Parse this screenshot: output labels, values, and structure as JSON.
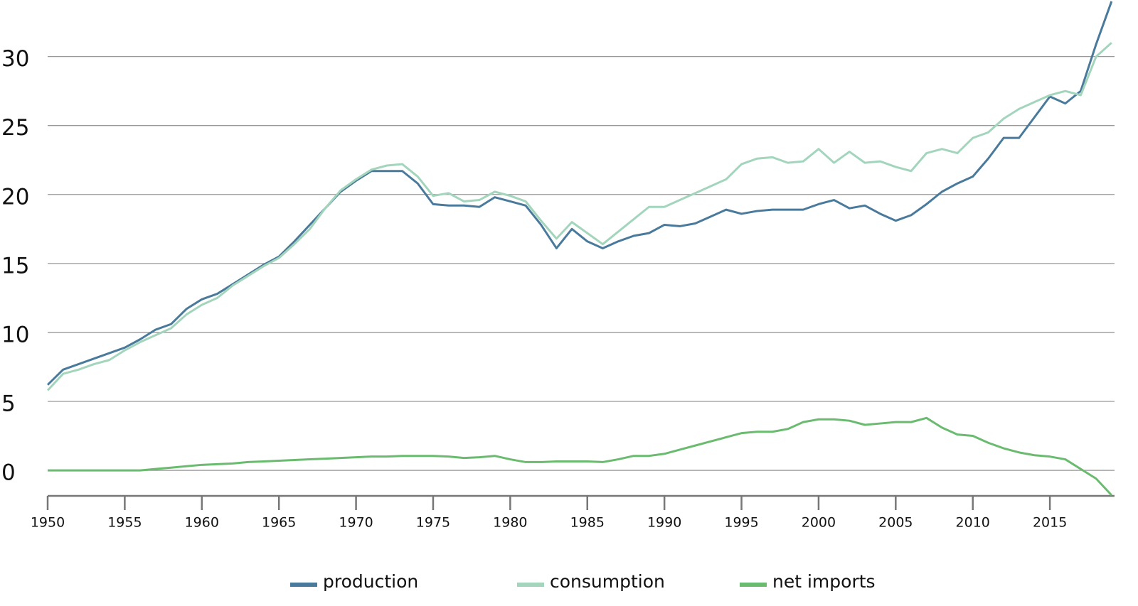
{
  "chart_data": {
    "type": "line",
    "x": [
      1950,
      1951,
      1952,
      1953,
      1954,
      1955,
      1956,
      1957,
      1958,
      1959,
      1960,
      1961,
      1962,
      1963,
      1964,
      1965,
      1966,
      1967,
      1968,
      1969,
      1970,
      1971,
      1972,
      1973,
      1974,
      1975,
      1976,
      1977,
      1978,
      1979,
      1980,
      1981,
      1982,
      1983,
      1984,
      1985,
      1986,
      1987,
      1988,
      1989,
      1990,
      1991,
      1992,
      1993,
      1994,
      1995,
      1996,
      1997,
      1998,
      1999,
      2000,
      2001,
      2002,
      2003,
      2004,
      2005,
      2006,
      2007,
      2008,
      2009,
      2010,
      2011,
      2012,
      2013,
      2014,
      2015,
      2016,
      2017,
      2018,
      2019
    ],
    "series": [
      {
        "name": "production",
        "color": "#4a7a9b",
        "values": [
          6.2,
          7.3,
          7.7,
          8.1,
          8.5,
          8.9,
          9.5,
          10.2,
          10.6,
          11.7,
          12.4,
          12.8,
          13.5,
          14.2,
          14.9,
          15.5,
          16.6,
          17.8,
          19.0,
          20.2,
          21.0,
          21.7,
          21.7,
          21.7,
          20.8,
          19.3,
          19.2,
          19.2,
          19.1,
          19.8,
          19.5,
          19.2,
          17.8,
          16.1,
          17.5,
          16.6,
          16.1,
          16.6,
          17.0,
          17.2,
          17.8,
          17.7,
          17.9,
          18.4,
          18.9,
          18.6,
          18.8,
          18.9,
          18.9,
          18.9,
          19.3,
          19.6,
          19.0,
          19.2,
          18.6,
          18.1,
          18.5,
          19.3,
          20.2,
          20.8,
          21.3,
          22.6,
          24.1,
          24.1,
          25.6,
          27.1,
          26.6,
          27.5,
          30.9,
          34.0
        ]
      },
      {
        "name": "consumption",
        "color": "#a3d5bd",
        "values": [
          5.8,
          7.0,
          7.3,
          7.7,
          8.0,
          8.7,
          9.3,
          9.8,
          10.3,
          11.3,
          12.0,
          12.5,
          13.4,
          14.1,
          14.8,
          15.4,
          16.4,
          17.5,
          19.0,
          20.3,
          21.1,
          21.8,
          22.1,
          22.2,
          21.3,
          19.9,
          20.1,
          19.5,
          19.6,
          20.2,
          19.9,
          19.5,
          18.1,
          16.8,
          18.0,
          17.2,
          16.4,
          17.3,
          18.2,
          19.1,
          19.1,
          19.6,
          20.1,
          20.6,
          21.1,
          22.2,
          22.6,
          22.7,
          22.3,
          22.4,
          23.3,
          22.3,
          23.1,
          22.3,
          22.4,
          22.0,
          21.7,
          23.0,
          23.3,
          23.0,
          24.1,
          24.5,
          25.5,
          26.2,
          26.7,
          27.2,
          27.5,
          27.2,
          30.0,
          31.0
        ]
      },
      {
        "name": "net imports",
        "color": "#6abb6f",
        "values": [
          0,
          0,
          0,
          0,
          0,
          0,
          0,
          0.1,
          0.2,
          0.3,
          0.4,
          0.45,
          0.5,
          0.6,
          0.65,
          0.7,
          0.75,
          0.8,
          0.85,
          0.9,
          0.95,
          1.0,
          1.0,
          1.05,
          1.05,
          1.05,
          1.0,
          0.9,
          0.95,
          1.05,
          0.8,
          0.6,
          0.6,
          0.65,
          0.65,
          0.65,
          0.6,
          0.8,
          1.05,
          1.05,
          1.2,
          1.5,
          1.8,
          2.1,
          2.4,
          2.7,
          2.8,
          2.8,
          3.0,
          3.5,
          3.7,
          3.7,
          3.6,
          3.3,
          3.4,
          3.5,
          3.5,
          3.8,
          3.1,
          2.6,
          2.5,
          2.0,
          1.6,
          1.3,
          1.1,
          1.0,
          0.8,
          0.1,
          -0.6,
          -1.8
        ]
      }
    ],
    "xlim": [
      1950,
      2019.1
    ],
    "xticks": [
      1950,
      1955,
      1960,
      1965,
      1970,
      1975,
      1980,
      1985,
      1990,
      1995,
      2000,
      2005,
      2010,
      2015
    ],
    "ylim": [
      -1.85,
      34.1
    ],
    "yticks": [
      0,
      5,
      10,
      15,
      20,
      25,
      30
    ],
    "grid": true
  }
}
